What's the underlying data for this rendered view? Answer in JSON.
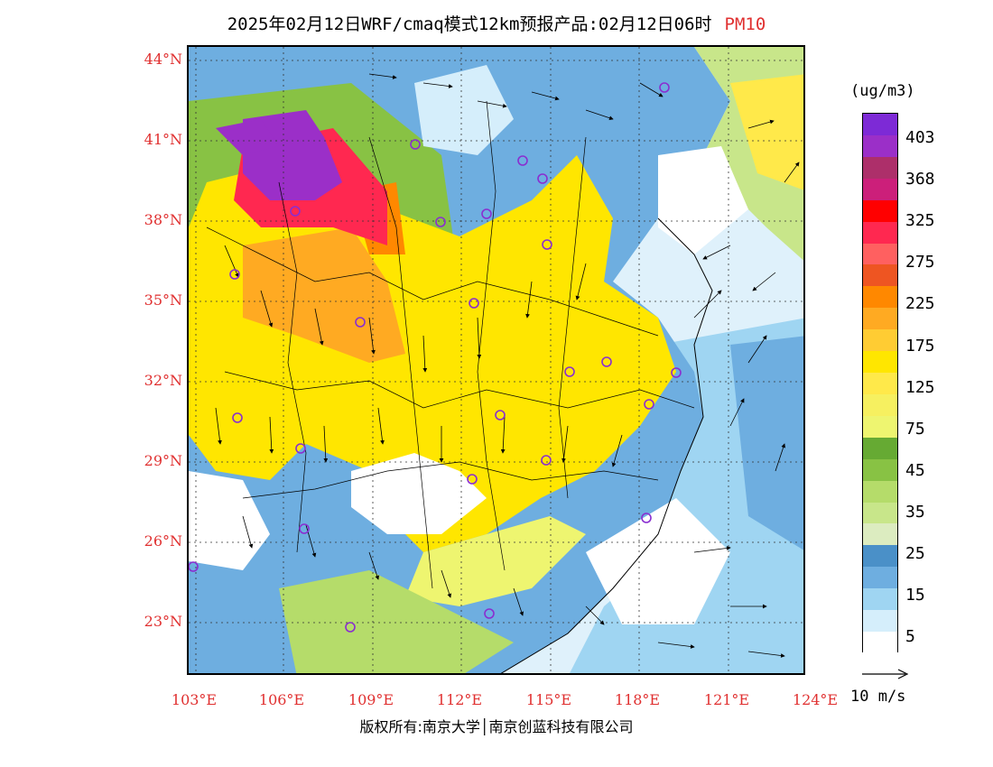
{
  "header": {
    "title": "2025年02月12日WRF/cmaq模式12km预报产品:02月12日06时",
    "product": "PM10"
  },
  "axes": {
    "lat_labels": [
      "44°N",
      "41°N",
      "38°N",
      "35°N",
      "32°N",
      "29°N",
      "26°N",
      "23°N"
    ],
    "lon_labels": [
      "103°E",
      "106°E",
      "109°E",
      "112°E",
      "115°E",
      "118°E",
      "121°E",
      "124°E"
    ]
  },
  "legend": {
    "unit": "(ug/m3)",
    "labels": [
      "403",
      "368",
      "325",
      "275",
      "225",
      "175",
      "125",
      "75",
      "45",
      "35",
      "25",
      "15",
      "5"
    ],
    "colors": [
      "#7d2ad6",
      "#9b2fc8",
      "#ad2f6a",
      "#cc1f7a",
      "#ff0000",
      "#ff2850",
      "#ff6060",
      "#ee5522",
      "#ff8800",
      "#ffaa22",
      "#ffcc33",
      "#ffe600",
      "#ffe94a",
      "#f6f060",
      "#eef570",
      "#66aa33",
      "#88c244",
      "#b5dc6a",
      "#c8e68a",
      "#dcecc0",
      "#4a90c8",
      "#6eaee0",
      "#9fd5f2",
      "#d5eefb",
      "#ffffff"
    ],
    "wind_scale": "10 m/s"
  },
  "footer": {
    "copyright": "版权所有:南京大学│南京创蓝科技有限公司"
  },
  "map": {
    "colors": {
      "sea": "#dff1fb",
      "land_low": "#5aa0d2",
      "clean": "#ffffff",
      "moderate": "#ffe600",
      "high": "#ffaa22",
      "very_high": "#ff2850",
      "extreme": "#8a2ed0",
      "green": "#88c244",
      "city_marker": "#8a2ed0"
    }
  }
}
